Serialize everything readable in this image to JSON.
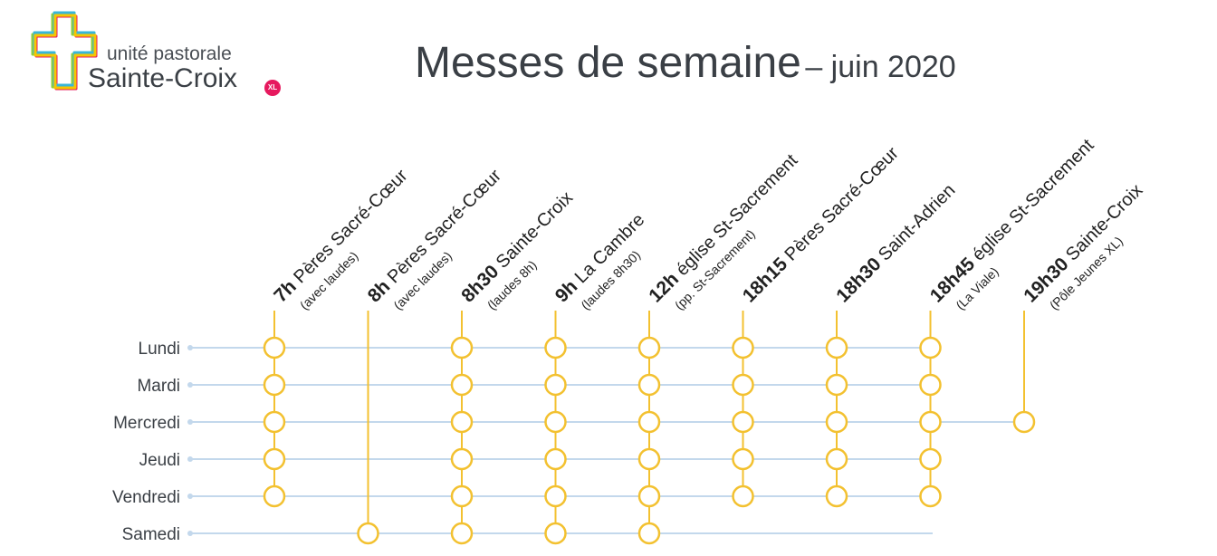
{
  "logo": {
    "subtitle": "unité pastorale",
    "name": "Sainte-Croix",
    "badge": "XL",
    "colors": [
      "#f7c600",
      "#38b6d8",
      "#e6195e",
      "#8fcd3a"
    ]
  },
  "title": {
    "main": "Messes de semaine",
    "sub": "– juin 2020"
  },
  "colors": {
    "accent": "#f3c130",
    "row_line": "#c3d8ec",
    "text": "#3a3f45"
  },
  "days": [
    "Lundi",
    "Mardi",
    "Mercredi",
    "Jeudi",
    "Vendredi",
    "Samedi"
  ],
  "columns": [
    {
      "time": "7h",
      "place": "Pères Sacré-Cœur",
      "note": "(avec laudes)",
      "days": [
        "Lundi",
        "Mardi",
        "Mercredi",
        "Jeudi",
        "Vendredi"
      ]
    },
    {
      "time": "8h",
      "place": "Pères Sacré-Cœur",
      "note": "(avec laudes)",
      "days": [
        "Samedi"
      ]
    },
    {
      "time": "8h30",
      "place": "Sainte-Croix",
      "note": "(laudes 8h)",
      "days": [
        "Lundi",
        "Mardi",
        "Mercredi",
        "Jeudi",
        "Vendredi",
        "Samedi"
      ]
    },
    {
      "time": "9h",
      "place": "La Cambre",
      "note": "(laudes 8h30)",
      "days": [
        "Lundi",
        "Mardi",
        "Mercredi",
        "Jeudi",
        "Vendredi",
        "Samedi"
      ]
    },
    {
      "time": "12h",
      "place": "église St-Sacrement",
      "note": "(pp. St-Sacrement)",
      "days": [
        "Lundi",
        "Mardi",
        "Mercredi",
        "Jeudi",
        "Vendredi",
        "Samedi"
      ]
    },
    {
      "time": "18h15",
      "place": "Pères Sacré-Cœur",
      "note": "",
      "days": [
        "Lundi",
        "Mardi",
        "Mercredi",
        "Jeudi",
        "Vendredi"
      ]
    },
    {
      "time": "18h30",
      "place": "Saint-Adrien",
      "note": "",
      "days": [
        "Lundi",
        "Mardi",
        "Mercredi",
        "Jeudi",
        "Vendredi"
      ]
    },
    {
      "time": "18h45",
      "place": "église St-Sacrement",
      "note": "(La Viale)",
      "days": [
        "Lundi",
        "Mardi",
        "Mercredi",
        "Jeudi",
        "Vendredi"
      ]
    },
    {
      "time": "19h30",
      "place": "Sainte-Croix",
      "note": "(Pôle Jeunes XL)",
      "days": [
        "Mercredi"
      ]
    }
  ]
}
